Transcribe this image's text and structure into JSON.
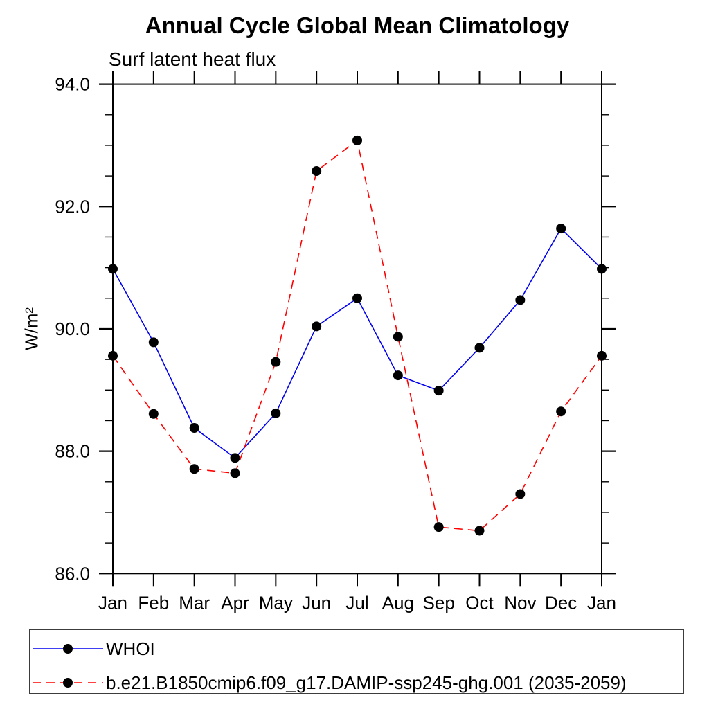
{
  "title": "Annual Cycle Global Mean Climatology",
  "subtitle": "Surf latent heat flux",
  "y_axis_title": "W/m²",
  "chart_data": {
    "type": "line",
    "title": "Annual Cycle Global Mean Climatology",
    "subtitle": "Surf latent heat flux",
    "xlabel": "",
    "ylabel": "W/m²",
    "categories": [
      "Jan",
      "Feb",
      "Mar",
      "Apr",
      "May",
      "Jun",
      "Jul",
      "Aug",
      "Sep",
      "Oct",
      "Nov",
      "Dec",
      "Jan"
    ],
    "series": [
      {
        "name": "WHOI",
        "color": "#0000ee",
        "line_style": "solid",
        "marker": "filled-circle",
        "marker_color": "#000000",
        "values": [
          90.98,
          89.78,
          88.38,
          87.89,
          88.62,
          90.04,
          90.5,
          89.24,
          88.99,
          89.69,
          90.47,
          91.64,
          90.98
        ]
      },
      {
        "name": "b.e21.B1850cmip6.f09_g17.DAMIP-ssp245-ghg.001 (2035-2059)",
        "color": "#ff0000",
        "line_style": "dashed",
        "marker": "filled-circle",
        "marker_color": "#000000",
        "values": [
          89.56,
          88.61,
          87.71,
          87.64,
          89.46,
          92.58,
          93.08,
          89.87,
          86.76,
          86.7,
          87.3,
          88.65,
          89.56
        ]
      }
    ],
    "ylim": [
      86.0,
      94.0
    ],
    "ytick_major": [
      86.0,
      88.0,
      90.0,
      92.0,
      94.0
    ],
    "ytick_labels": [
      "86.0",
      "88.0",
      "90.0",
      "92.0",
      "94.0"
    ],
    "ytick_minor_step": 0.5,
    "grid": false,
    "legend_position": "bottom"
  }
}
